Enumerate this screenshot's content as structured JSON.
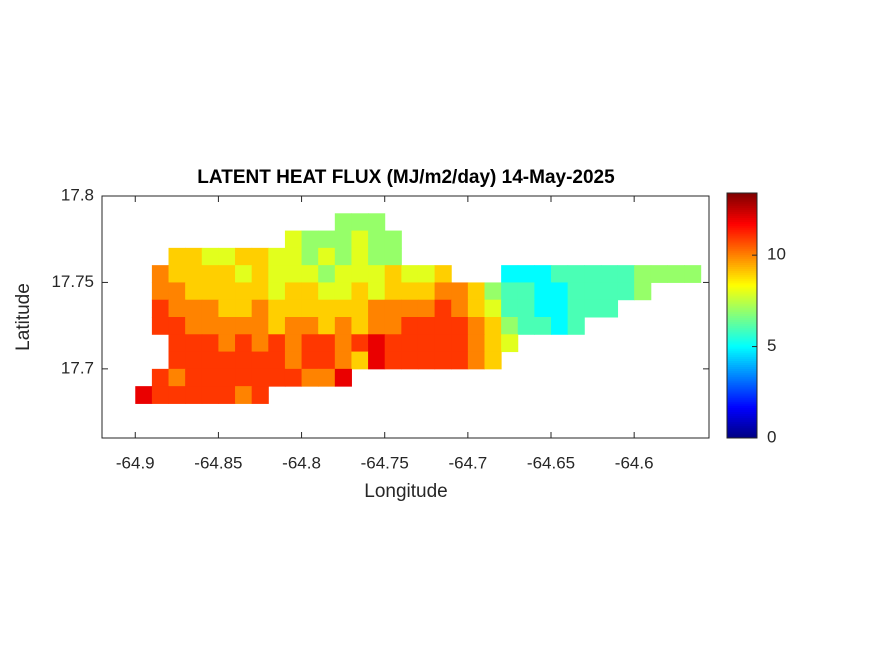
{
  "chart_data": {
    "type": "heatmap",
    "title": "LATENT HEAT FLUX (MJ/m2/day) 14-May-2025",
    "xlabel": "Longitude",
    "ylabel": "Latitude",
    "xlim": [
      -64.92,
      -64.555
    ],
    "ylim": [
      17.66,
      17.8
    ],
    "xticks": [
      -64.9,
      -64.85,
      -64.8,
      -64.75,
      -64.7,
      -64.65,
      -64.6
    ],
    "yticks": [
      17.7,
      17.75,
      17.8
    ],
    "colormap": "jet",
    "clim": [
      0,
      13.4
    ],
    "cticks": [
      0,
      5,
      10
    ],
    "x": [
      -64.895,
      -64.885,
      -64.875,
      -64.865,
      -64.855,
      -64.845,
      -64.835,
      -64.825,
      -64.815,
      -64.805,
      -64.795,
      -64.785,
      -64.775,
      -64.765,
      -64.755,
      -64.745,
      -64.735,
      -64.725,
      -64.715,
      -64.705,
      -64.695,
      -64.685,
      -64.675,
      -64.665,
      -64.655,
      -64.645,
      -64.635,
      -64.625,
      -64.615,
      -64.605,
      -64.595,
      -64.585,
      -64.575,
      -64.565
    ],
    "y": [
      17.785,
      17.775,
      17.765,
      17.755,
      17.745,
      17.735,
      17.725,
      17.715,
      17.705,
      17.695,
      17.685
    ],
    "z": [
      [
        null,
        null,
        null,
        null,
        null,
        null,
        null,
        null,
        null,
        null,
        null,
        null,
        7,
        7,
        7,
        null,
        null,
        null,
        null,
        null,
        null,
        null,
        null,
        null,
        null,
        null,
        null,
        null,
        null,
        null,
        null,
        null,
        null,
        null
      ],
      [
        null,
        null,
        null,
        null,
        null,
        null,
        null,
        null,
        null,
        8,
        7,
        7,
        7,
        8,
        7,
        7,
        null,
        null,
        null,
        null,
        null,
        null,
        null,
        null,
        null,
        null,
        null,
        null,
        null,
        null,
        null,
        null,
        null,
        null
      ],
      [
        null,
        null,
        9,
        9,
        8,
        8,
        9,
        9,
        8,
        8,
        7,
        8,
        7,
        8,
        7,
        7,
        null,
        null,
        null,
        null,
        null,
        null,
        null,
        null,
        null,
        null,
        null,
        null,
        null,
        null,
        null,
        null,
        null,
        null
      ],
      [
        null,
        10,
        9,
        9,
        9,
        9,
        8,
        9,
        8,
        8,
        8,
        7,
        8,
        8,
        8,
        9,
        8,
        8,
        9,
        null,
        null,
        null,
        5,
        5,
        5,
        6,
        6,
        6,
        6,
        6,
        7,
        7,
        7,
        7
      ],
      [
        null,
        10,
        10,
        9,
        9,
        9,
        9,
        9,
        8,
        9,
        9,
        8,
        8,
        9,
        8,
        9,
        9,
        9,
        10,
        10,
        9,
        7,
        6,
        6,
        5,
        5,
        6,
        6,
        6,
        6,
        7,
        null,
        null,
        null
      ],
      [
        null,
        11,
        10,
        10,
        10,
        9,
        9,
        10,
        9,
        9,
        9,
        9,
        9,
        9,
        10,
        10,
        10,
        10,
        11,
        10,
        9,
        8,
        6,
        6,
        5,
        5,
        6,
        6,
        6,
        null,
        null,
        null,
        null,
        null
      ],
      [
        null,
        11,
        11,
        10,
        10,
        10,
        10,
        10,
        9,
        10,
        10,
        9,
        10,
        9,
        10,
        10,
        11,
        11,
        11,
        11,
        10,
        9,
        7,
        6,
        6,
        5,
        6,
        null,
        null,
        null,
        null,
        null,
        null,
        null
      ],
      [
        null,
        null,
        11,
        11,
        11,
        10,
        11,
        10,
        11,
        10,
        11,
        11,
        10,
        11,
        12,
        11,
        11,
        11,
        11,
        11,
        10,
        9,
        8,
        null,
        null,
        null,
        null,
        null,
        null,
        null,
        null,
        null,
        null,
        null
      ],
      [
        null,
        null,
        11,
        11,
        11,
        11,
        11,
        11,
        11,
        10,
        11,
        11,
        10,
        9,
        12,
        11,
        11,
        11,
        11,
        11,
        10,
        9,
        null,
        null,
        null,
        null,
        null,
        null,
        null,
        null,
        null,
        null,
        null,
        null
      ],
      [
        null,
        11,
        10,
        11,
        11,
        11,
        11,
        11,
        11,
        11,
        10,
        10,
        12,
        null,
        null,
        null,
        null,
        null,
        null,
        null,
        null,
        null,
        null,
        null,
        null,
        null,
        null,
        null,
        null,
        null,
        null,
        null,
        null,
        null
      ],
      [
        12,
        11,
        11,
        11,
        11,
        11,
        10,
        11,
        null,
        null,
        null,
        null,
        null,
        null,
        null,
        null,
        null,
        null,
        null,
        null,
        null,
        null,
        null,
        null,
        null,
        null,
        null,
        null,
        null,
        null,
        null,
        null,
        null,
        null
      ]
    ]
  }
}
